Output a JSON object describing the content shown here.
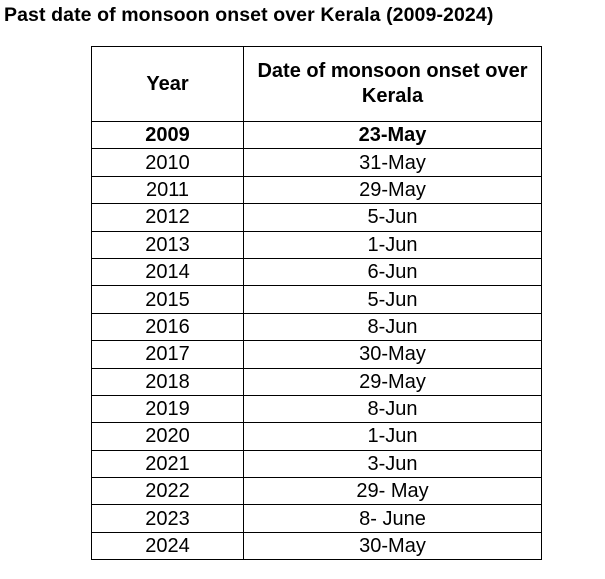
{
  "title": "Past date of monsoon onset over Kerala (2009-2024)",
  "table": {
    "headers": [
      "Year",
      "Date of monsoon onset over Kerala"
    ],
    "rows": [
      {
        "year": "2009",
        "date": "23-May",
        "bold": true
      },
      {
        "year": "2010",
        "date": "31-May"
      },
      {
        "year": "2011",
        "date": "29-May"
      },
      {
        "year": "2012",
        "date": "5-Jun"
      },
      {
        "year": "2013",
        "date": "1-Jun"
      },
      {
        "year": "2014",
        "date": "6-Jun"
      },
      {
        "year": "2015",
        "date": "5-Jun"
      },
      {
        "year": "2016",
        "date": "8-Jun"
      },
      {
        "year": "2017",
        "date": "30-May"
      },
      {
        "year": "2018",
        "date": "29-May"
      },
      {
        "year": "2019",
        "date": "8-Jun"
      },
      {
        "year": "2020",
        "date": "1-Jun"
      },
      {
        "year": "2021",
        "date": "3-Jun"
      },
      {
        "year": "2022",
        "date": "29- May"
      },
      {
        "year": "2023",
        "date": "8- June"
      },
      {
        "year": "2024",
        "date": "30-May"
      }
    ]
  }
}
